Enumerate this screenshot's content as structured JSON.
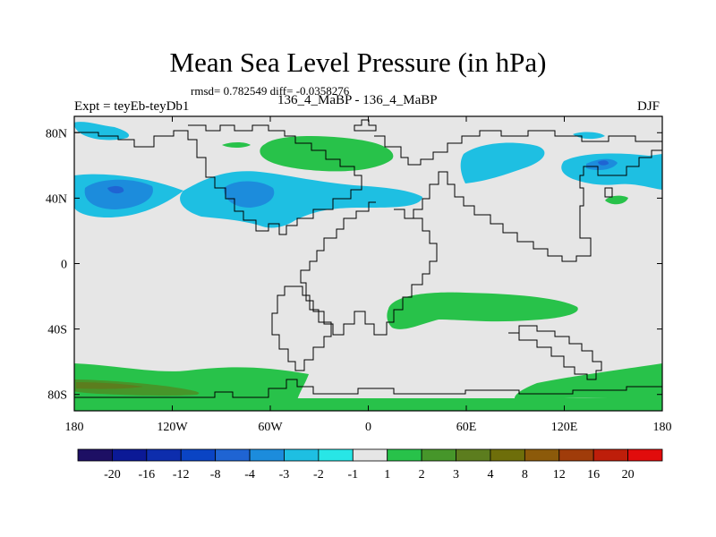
{
  "title": "Mean Sea Level Pressure (in hPa)",
  "stats_line": "rmsd= 0.782549 diff= -0.0358276",
  "experiment_label": "Expt = teyEb-teyDb1",
  "difference_label": "136_4_MaBP - 136_4_MaBP",
  "season": "DJF",
  "chart_data": {
    "type": "heatmap",
    "projection": "cylindrical equidistant",
    "title": "Mean Sea Level Pressure (in hPa)",
    "units": "hPa",
    "xlim": [
      -180,
      180
    ],
    "ylim": [
      -90,
      90
    ],
    "x_ticks": [
      {
        "value": -180,
        "label": "180"
      },
      {
        "value": -120,
        "label": "120W"
      },
      {
        "value": -60,
        "label": "60W"
      },
      {
        "value": 0,
        "label": "0"
      },
      {
        "value": 60,
        "label": "60E"
      },
      {
        "value": 120,
        "label": "120E"
      },
      {
        "value": 180,
        "label": "180"
      }
    ],
    "y_ticks": [
      {
        "value": 80,
        "label": "80N"
      },
      {
        "value": 40,
        "label": "40N"
      },
      {
        "value": 0,
        "label": "0"
      },
      {
        "value": -40,
        "label": "40S"
      },
      {
        "value": -80,
        "label": "80S"
      }
    ],
    "colorbar": {
      "colors": [
        "#1d0f64",
        "#0b1996",
        "#0d2dad",
        "#0a44c4",
        "#1f64d3",
        "#1c8cdc",
        "#1ebfe2",
        "#28e6e6",
        "#e6e6e6",
        "#28c24a",
        "#46962a",
        "#5c7d1e",
        "#6e6e0a",
        "#8c5a0a",
        "#a03c0a",
        "#be1e0a",
        "#e10c0c"
      ],
      "labels": [
        "-20",
        "-16",
        "-12",
        "-8",
        "-4",
        "-3",
        "-2",
        "-1",
        "1",
        "2",
        "3",
        "4",
        "8",
        "12",
        "16",
        "20"
      ]
    },
    "anomaly_regions": [
      {
        "name": "north-atlantic-low",
        "lon": [
          -150,
          -30
        ],
        "lat": [
          28,
          58
        ],
        "class": "-2 to -1"
      },
      {
        "name": "north-atlantic-low-core",
        "lon": [
          -175,
          -135
        ],
        "lat": [
          35,
          52
        ],
        "class": "-3 to -2"
      },
      {
        "name": "north-pacific-west-low",
        "lon": [
          140,
          180
        ],
        "lat": [
          40,
          65
        ],
        "class": "-2 to -1"
      },
      {
        "name": "arctic-high",
        "lon": [
          -60,
          15
        ],
        "lat": [
          62,
          80
        ],
        "class": "1 to 2"
      },
      {
        "name": "southern-midlatitude-high",
        "lon": [
          15,
          130
        ],
        "lat": [
          -50,
          -25
        ],
        "class": "1 to 2"
      },
      {
        "name": "antarctic-high",
        "lon": [
          -180,
          -40
        ],
        "lat": [
          -90,
          -65
        ],
        "class": "1 to 2"
      },
      {
        "name": "antarctic-high-core",
        "lon": [
          -180,
          -110
        ],
        "lat": [
          -86,
          -76
        ],
        "class": "3 to 4"
      }
    ]
  }
}
